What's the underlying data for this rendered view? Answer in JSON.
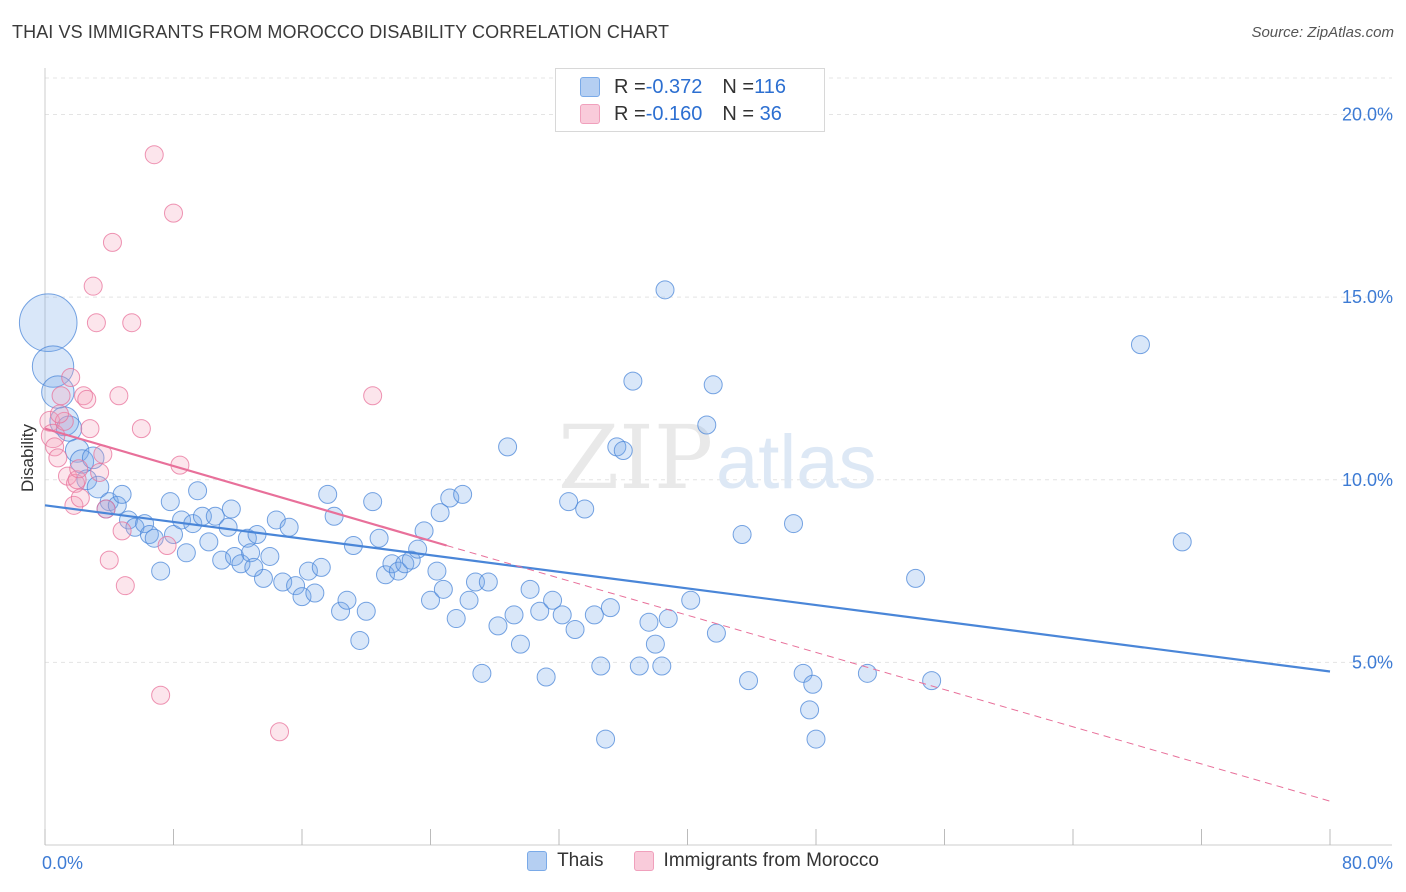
{
  "header": {
    "title": "THAI VS IMMIGRANTS FROM MOROCCO DISABILITY CORRELATION CHART",
    "source": "Source: ZipAtlas.com"
  },
  "watermark": {
    "zip": "ZIP",
    "atlas": "atlas"
  },
  "legend": {
    "rows": [
      {
        "r_label": "R = ",
        "r_value": "-0.372",
        "n_label": "N = ",
        "n_value": "116",
        "color": "#7aaae8"
      },
      {
        "r_label": "R = ",
        "r_value": "-0.160",
        "n_label": "N = ",
        "n_value": " 36",
        "color": "#f0a0bc"
      }
    ]
  },
  "chart_data": {
    "type": "scatter",
    "ylabel": "Disability",
    "xlim": [
      0,
      80
    ],
    "ylim": [
      0,
      21
    ],
    "x_tick_labels": [
      "0.0%",
      "80.0%"
    ],
    "y_ticks": [
      5,
      10,
      15,
      20
    ],
    "y_tick_labels": [
      "5.0%",
      "10.0%",
      "15.0%",
      "20.0%"
    ],
    "grid": true,
    "series": [
      {
        "name": "Thais",
        "color": "#4a86d8",
        "fill": "rgba(120,168,232,0.28)",
        "trend": {
          "x0": 0,
          "y0": 9.3,
          "x1": 80,
          "y1": 4.75
        },
        "points": [
          [
            0.2,
            14.3,
            3.2
          ],
          [
            0.5,
            13.1,
            2.3
          ],
          [
            0.8,
            12.4,
            1.8
          ],
          [
            1.2,
            11.6,
            1.6
          ],
          [
            1.5,
            11.4,
            1.4
          ],
          [
            2.0,
            10.8,
            1.3
          ],
          [
            2.3,
            10.5,
            1.3
          ],
          [
            3.0,
            10.6,
            1.2
          ],
          [
            2.6,
            10.0,
            1.1
          ],
          [
            3.3,
            9.8,
            1.2
          ],
          [
            4.0,
            9.4,
            1.0
          ],
          [
            3.8,
            9.2,
            1.0
          ],
          [
            4.5,
            9.3,
            1.0
          ],
          [
            4.8,
            9.6,
            1.0
          ],
          [
            5.2,
            8.9,
            1.0
          ],
          [
            5.6,
            8.7,
            1.0
          ],
          [
            6.2,
            8.8,
            1.0
          ],
          [
            6.5,
            8.5,
            1.0
          ],
          [
            6.8,
            8.4,
            1.0
          ],
          [
            7.2,
            7.5,
            1.0
          ],
          [
            7.8,
            9.4,
            1.0
          ],
          [
            8.0,
            8.5,
            1.0
          ],
          [
            8.5,
            8.9,
            1.0
          ],
          [
            8.8,
            8.0,
            1.0
          ],
          [
            9.2,
            8.8,
            1.0
          ],
          [
            9.5,
            9.7,
            1.0
          ],
          [
            9.8,
            9.0,
            1.0
          ],
          [
            10.2,
            8.3,
            1.0
          ],
          [
            10.6,
            9.0,
            1.0
          ],
          [
            11.0,
            7.8,
            1.0
          ],
          [
            11.4,
            8.7,
            1.0
          ],
          [
            11.8,
            7.9,
            1.0
          ],
          [
            12.2,
            7.7,
            1.0
          ],
          [
            12.6,
            8.4,
            1.0
          ],
          [
            12.8,
            8.0,
            1.0
          ],
          [
            13.2,
            8.5,
            1.0
          ],
          [
            13.6,
            7.3,
            1.0
          ],
          [
            14.0,
            7.9,
            1.0
          ],
          [
            14.4,
            8.9,
            1.0
          ],
          [
            14.8,
            7.2,
            1.0
          ],
          [
            15.2,
            8.7,
            1.0
          ],
          [
            15.6,
            7.1,
            1.0
          ],
          [
            16.0,
            6.8,
            1.0
          ],
          [
            16.4,
            7.5,
            1.0
          ],
          [
            16.8,
            6.9,
            1.0
          ],
          [
            17.2,
            7.6,
            1.0
          ],
          [
            17.6,
            9.6,
            1.0
          ],
          [
            18.0,
            9.0,
            1.0
          ],
          [
            18.4,
            6.4,
            1.0
          ],
          [
            18.8,
            6.7,
            1.0
          ],
          [
            19.2,
            8.2,
            1.0
          ],
          [
            19.6,
            5.6,
            1.0
          ],
          [
            20.0,
            6.4,
            1.0
          ],
          [
            20.4,
            9.4,
            1.0
          ],
          [
            20.8,
            8.4,
            1.0
          ],
          [
            21.2,
            7.4,
            1.0
          ],
          [
            21.6,
            7.7,
            1.0
          ],
          [
            22.0,
            7.5,
            1.0
          ],
          [
            22.4,
            7.7,
            1.0
          ],
          [
            22.8,
            7.8,
            1.0
          ],
          [
            23.2,
            8.1,
            1.0
          ],
          [
            23.6,
            8.6,
            1.0
          ],
          [
            24.0,
            6.7,
            1.0
          ],
          [
            24.4,
            7.5,
            1.0
          ],
          [
            24.8,
            7.0,
            1.0
          ],
          [
            25.2,
            9.5,
            1.0
          ],
          [
            25.6,
            6.2,
            1.0
          ],
          [
            26.0,
            9.6,
            1.0
          ],
          [
            26.4,
            6.7,
            1.0
          ],
          [
            26.8,
            7.2,
            1.0
          ],
          [
            27.2,
            4.7,
            1.0
          ],
          [
            27.6,
            7.2,
            1.0
          ],
          [
            28.2,
            6.0,
            1.0
          ],
          [
            28.8,
            10.9,
            1.0
          ],
          [
            29.2,
            6.3,
            1.0
          ],
          [
            29.6,
            5.5,
            1.0
          ],
          [
            30.2,
            7.0,
            1.0
          ],
          [
            30.8,
            6.4,
            1.0
          ],
          [
            31.2,
            4.6,
            1.0
          ],
          [
            31.6,
            6.7,
            1.0
          ],
          [
            32.2,
            6.3,
            1.0
          ],
          [
            32.6,
            9.4,
            1.0
          ],
          [
            33.0,
            5.9,
            1.0
          ],
          [
            33.6,
            9.2,
            1.0
          ],
          [
            34.2,
            6.3,
            1.0
          ],
          [
            34.6,
            4.9,
            1.0
          ],
          [
            34.9,
            2.9,
            1.0
          ],
          [
            35.2,
            6.5,
            1.0
          ],
          [
            35.6,
            10.9,
            1.0
          ],
          [
            36.0,
            10.8,
            1.0
          ],
          [
            36.6,
            12.7,
            1.0
          ],
          [
            37.0,
            4.9,
            1.0
          ],
          [
            37.6,
            6.1,
            1.0
          ],
          [
            38.0,
            5.5,
            1.0
          ],
          [
            38.4,
            4.9,
            1.0
          ],
          [
            38.6,
            15.2,
            1.0
          ],
          [
            38.8,
            6.2,
            1.0
          ],
          [
            40.2,
            6.7,
            1.0
          ],
          [
            41.2,
            11.5,
            1.0
          ],
          [
            41.6,
            12.6,
            1.0
          ],
          [
            41.8,
            5.8,
            1.0
          ],
          [
            43.4,
            8.5,
            1.0
          ],
          [
            43.8,
            4.5,
            1.0
          ],
          [
            46.6,
            8.8,
            1.0
          ],
          [
            47.2,
            4.7,
            1.0
          ],
          [
            47.6,
            3.7,
            1.0
          ],
          [
            47.8,
            4.4,
            1.0
          ],
          [
            48.0,
            2.9,
            1.0
          ],
          [
            51.2,
            4.7,
            1.0
          ],
          [
            54.2,
            7.3,
            1.0
          ],
          [
            55.2,
            4.5,
            1.0
          ],
          [
            68.2,
            13.7,
            1.0
          ],
          [
            70.8,
            8.3,
            1.0
          ],
          [
            11.6,
            9.2,
            1.0
          ],
          [
            13.0,
            7.6,
            1.0
          ],
          [
            24.6,
            9.1,
            1.0
          ]
        ]
      },
      {
        "name": "Immigrants from Morocco",
        "color": "#e8709a",
        "fill": "rgba(244,160,188,0.28)",
        "trend": {
          "x0": 0,
          "y0": 11.4,
          "x1": 25,
          "y1": 8.2,
          "dash_x1": 80,
          "dash_y1": 1.2
        },
        "points": [
          [
            0.3,
            11.6,
            1.1
          ],
          [
            0.5,
            11.2,
            1.3
          ],
          [
            0.6,
            10.9,
            1.0
          ],
          [
            0.8,
            10.6,
            1.0
          ],
          [
            1.0,
            12.3,
            1.0
          ],
          [
            1.2,
            11.6,
            1.0
          ],
          [
            1.4,
            10.1,
            1.0
          ],
          [
            1.6,
            12.8,
            1.0
          ],
          [
            1.8,
            9.3,
            1.0
          ],
          [
            1.9,
            9.9,
            1.0
          ],
          [
            2.0,
            10.0,
            1.0
          ],
          [
            2.2,
            9.5,
            1.0
          ],
          [
            2.4,
            12.3,
            1.0
          ],
          [
            2.6,
            12.2,
            1.0
          ],
          [
            2.8,
            11.4,
            1.0
          ],
          [
            3.0,
            15.3,
            1.0
          ],
          [
            3.2,
            14.3,
            1.0
          ],
          [
            3.4,
            10.2,
            1.0
          ],
          [
            3.6,
            10.7,
            1.0
          ],
          [
            3.8,
            9.2,
            1.0
          ],
          [
            4.0,
            7.8,
            1.0
          ],
          [
            4.2,
            16.5,
            1.0
          ],
          [
            4.6,
            12.3,
            1.0
          ],
          [
            4.8,
            8.6,
            1.0
          ],
          [
            5.0,
            7.1,
            1.0
          ],
          [
            5.4,
            14.3,
            1.0
          ],
          [
            6.0,
            11.4,
            1.0
          ],
          [
            6.8,
            18.9,
            1.0
          ],
          [
            7.2,
            4.1,
            1.0
          ],
          [
            7.6,
            8.2,
            1.0
          ],
          [
            8.0,
            17.3,
            1.0
          ],
          [
            8.4,
            10.4,
            1.0
          ],
          [
            14.6,
            3.1,
            1.0
          ],
          [
            20.4,
            12.3,
            1.0
          ],
          [
            0.9,
            11.8,
            1.0
          ],
          [
            2.1,
            10.3,
            1.0
          ]
        ]
      }
    ]
  }
}
